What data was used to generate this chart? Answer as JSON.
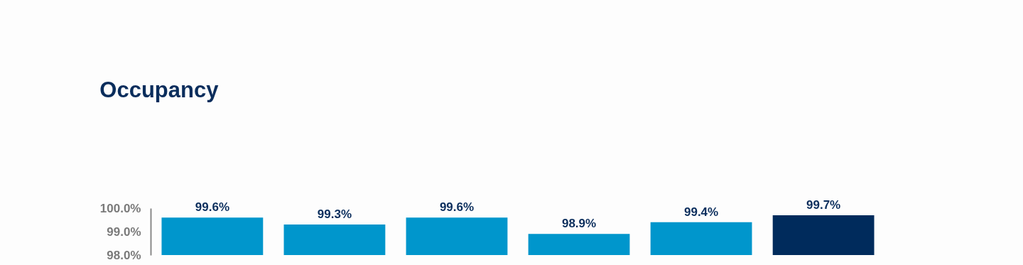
{
  "chart_data": {
    "type": "bar",
    "title": "Occupancy",
    "categories": [
      null,
      null,
      null,
      null,
      null,
      null
    ],
    "values": [
      99.6,
      99.3,
      99.6,
      98.9,
      99.4,
      99.7
    ],
    "colors": [
      "#0096cc",
      "#0096cc",
      "#0096cc",
      "#0096cc",
      "#0096cc",
      "#002b5c"
    ],
    "ylim": [
      98.0,
      100.0
    ],
    "yticks": [
      {
        "value": 98.0,
        "label": "98.0%"
      },
      {
        "value": 99.0,
        "label": "99.0%"
      },
      {
        "value": 100.0,
        "label": "100.0%"
      }
    ],
    "value_labels": [
      "99.6%",
      "99.3%",
      "99.6%",
      "98.9%",
      "99.4%",
      "99.7%"
    ],
    "grid": false
  }
}
